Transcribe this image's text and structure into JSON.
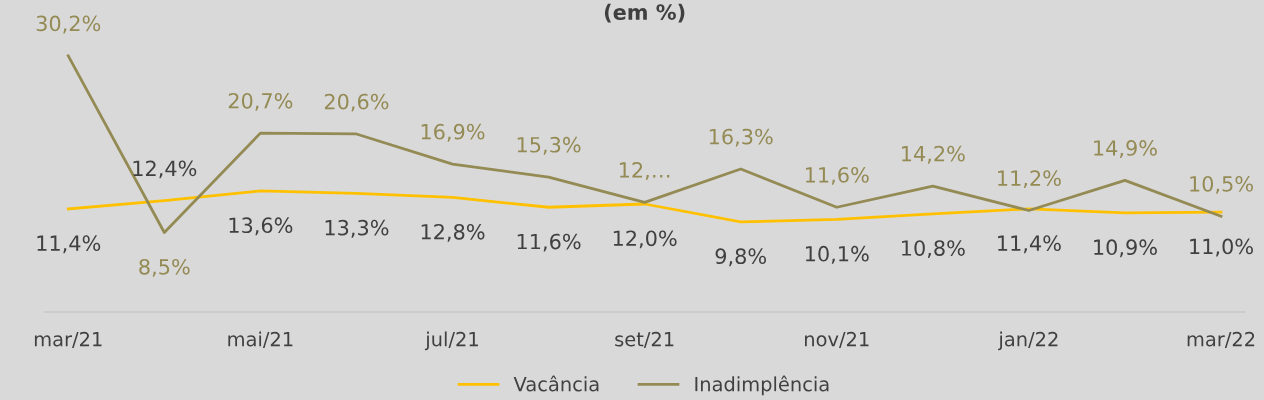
{
  "chart_data": {
    "type": "line",
    "title": "(em %)",
    "categories": [
      "mar/21",
      null,
      "mai/21",
      null,
      "jul/21",
      null,
      "set/21",
      null,
      "nov/21",
      null,
      "jan/22",
      null,
      "mar/22"
    ],
    "series": [
      {
        "name": "Vacância",
        "color": "#ffc000",
        "values": [
          11.4,
          12.4,
          13.6,
          13.3,
          12.8,
          11.6,
          12.0,
          9.8,
          10.1,
          10.8,
          11.4,
          10.9,
          11.0
        ],
        "value_labels": [
          "11,4%",
          "12,4%",
          "13,6%",
          "13,3%",
          "12,8%",
          "11,6%",
          "12,0%",
          "9,8%",
          "10,1%",
          "10,8%",
          "11,4%",
          "10,9%",
          "11,0%"
        ]
      },
      {
        "name": "Inadimplência",
        "color": "#948a54",
        "values": [
          30.2,
          8.5,
          20.7,
          20.6,
          16.9,
          15.3,
          12.2,
          16.3,
          11.6,
          14.2,
          11.2,
          14.9,
          10.5
        ],
        "value_labels": [
          "30,2%",
          "8,5%",
          "20,7%",
          "20,6%",
          "16,9%",
          "15,3%",
          "12,…",
          "16,3%",
          "11,6%",
          "14,2%",
          "11,2%",
          "14,9%",
          "10,5%"
        ]
      }
    ],
    "grid": false,
    "legend": "bottom",
    "marker": "none",
    "line_style": "solid"
  }
}
